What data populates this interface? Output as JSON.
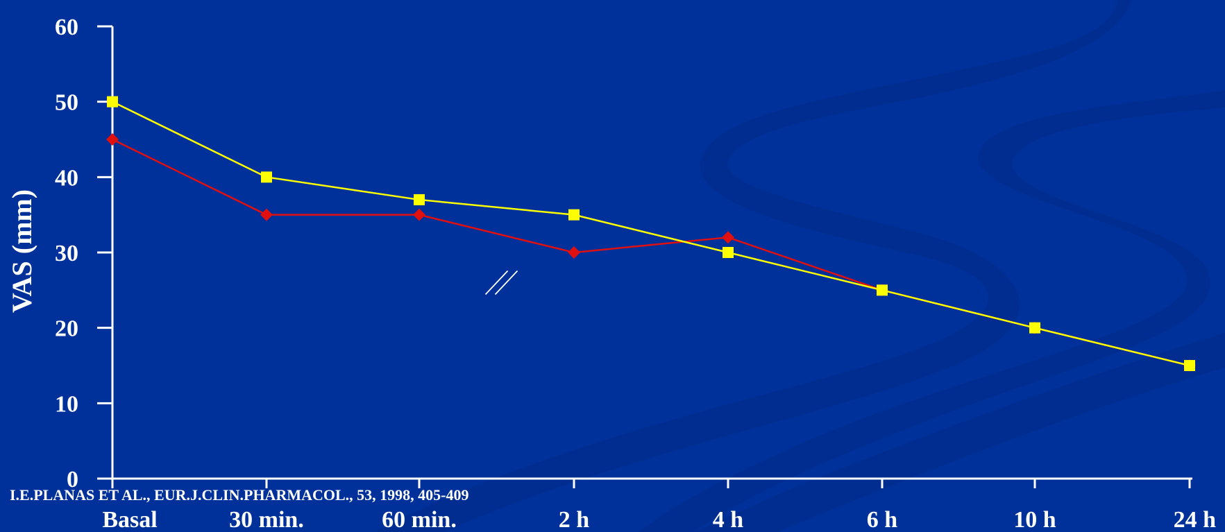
{
  "colors": {
    "background": "#00319a",
    "decoration": "#002d8e",
    "axis": "#ffffff",
    "series_red": "#e01010",
    "series_yellow": "#ffff00"
  },
  "chart_data": {
    "type": "line",
    "title": "",
    "xlabel": "",
    "ylabel": "VAS (mm)",
    "ylim": [
      0,
      60
    ],
    "yticks": [
      "0",
      "10",
      "20",
      "30",
      "40",
      "50",
      "60"
    ],
    "categories": [
      "Basal",
      "30 min.",
      "60 min.",
      "2 h",
      "4 h",
      "6 h",
      "10 h",
      "24 h"
    ],
    "grid": false,
    "axis_break_between": [
      "60 min.",
      "2 h"
    ],
    "annotation": "I.E.PLANAS ET AL., EUR.J.CLIN.PHARMACOL., 53, 1998, 405-409",
    "series": [
      {
        "color": "#e01010",
        "marker": "diamond",
        "values": [
          45,
          35,
          35,
          30,
          32,
          25,
          20,
          15
        ]
      },
      {
        "color": "#ffff00",
        "marker": "square",
        "values": [
          50,
          40,
          37,
          35,
          30,
          25,
          20,
          15
        ]
      }
    ]
  }
}
